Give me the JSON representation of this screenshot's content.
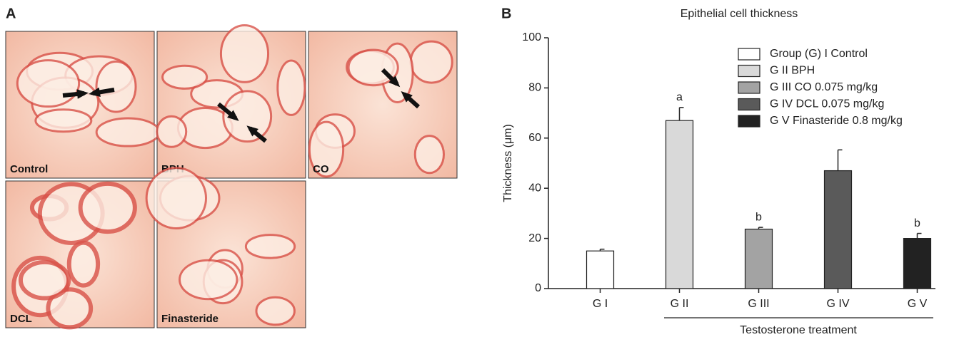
{
  "panel_a": {
    "label": "A",
    "images": [
      "Control",
      "BPH",
      "CO",
      "DCL",
      "Finasteride"
    ]
  },
  "chart_data": {
    "type": "bar",
    "panel_label": "B",
    "title": "Epithelial cell thickness",
    "y_label": "Thickness (μm)",
    "x_label": "Testosterone treatment",
    "categories": [
      "G I",
      "G II",
      "G III",
      "G IV",
      "G V"
    ],
    "values": [
      15,
      67,
      23.7,
      47,
      20
    ],
    "errors": [
      0.7,
      5.2,
      0.7,
      8.3,
      2
    ],
    "colors": [
      "#ffffff",
      "#d9d9d9",
      "#a3a3a3",
      "#5a5a5a",
      "#222222"
    ],
    "legend": [
      "Group (G) I Control",
      "G II BPH",
      "G III CO 0.075 mg/kg",
      "G IV DCL 0.075 mg/kg",
      "G V Finasteride 0.8 mg/kg"
    ],
    "significance": [
      null,
      "a",
      "b",
      null,
      "b"
    ],
    "ylim": [
      0,
      100
    ],
    "yticks": [
      0,
      20,
      40,
      60,
      80,
      100
    ]
  }
}
